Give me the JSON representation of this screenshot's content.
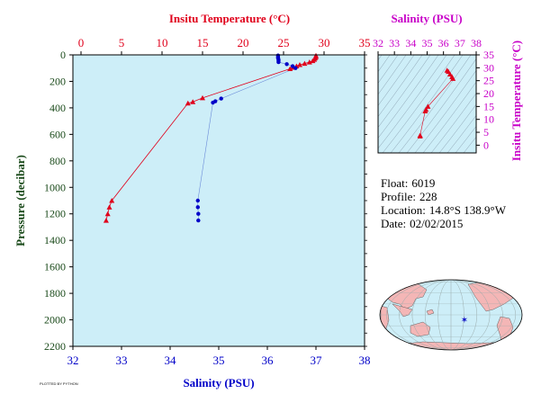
{
  "chart_data": {
    "type": "scatter",
    "main_plot": {
      "temperature_axis": {
        "label": "Insitu Temperature (°C)",
        "ticks": [
          0,
          5,
          10,
          15,
          20,
          25,
          30,
          35
        ],
        "range": [
          -1,
          35
        ],
        "color": "#e0001b"
      },
      "salinity_axis": {
        "label": "Salinity (PSU)",
        "ticks": [
          32,
          33,
          34,
          35,
          36,
          37,
          38
        ],
        "range": [
          32,
          38
        ],
        "color": "#0000c8"
      },
      "pressure_axis": {
        "label": "Pressure (decibar)",
        "ticks": [
          0,
          200,
          400,
          600,
          800,
          1000,
          1200,
          1400,
          1600,
          1800,
          2000,
          2200
        ],
        "range": [
          0,
          2200
        ],
        "inverted": true,
        "color": "#1a4a1a"
      },
      "temperature_profile": [
        {
          "t": 29.0,
          "p": 5
        },
        {
          "t": 29.0,
          "p": 15
        },
        {
          "t": 28.9,
          "p": 25
        },
        {
          "t": 28.8,
          "p": 35
        },
        {
          "t": 28.6,
          "p": 45
        },
        {
          "t": 28.2,
          "p": 55
        },
        {
          "t": 27.6,
          "p": 65
        },
        {
          "t": 27.0,
          "p": 75
        },
        {
          "t": 26.6,
          "p": 85
        },
        {
          "t": 26.2,
          "p": 95
        },
        {
          "t": 25.8,
          "p": 105
        },
        {
          "t": 15.0,
          "p": 325
        },
        {
          "t": 13.8,
          "p": 355
        },
        {
          "t": 13.2,
          "p": 365
        },
        {
          "t": 3.8,
          "p": 1100
        },
        {
          "t": 3.5,
          "p": 1150
        },
        {
          "t": 3.3,
          "p": 1200
        },
        {
          "t": 3.1,
          "p": 1250
        }
      ],
      "salinity_profile": [
        {
          "s": 36.22,
          "p": 5
        },
        {
          "s": 36.22,
          "p": 15
        },
        {
          "s": 36.22,
          "p": 25
        },
        {
          "s": 36.23,
          "p": 35
        },
        {
          "s": 36.23,
          "p": 45
        },
        {
          "s": 36.23,
          "p": 55
        },
        {
          "s": 36.4,
          "p": 70
        },
        {
          "s": 36.52,
          "p": 85
        },
        {
          "s": 36.58,
          "p": 100
        },
        {
          "s": 35.05,
          "p": 330
        },
        {
          "s": 34.93,
          "p": 350
        },
        {
          "s": 34.88,
          "p": 360
        },
        {
          "s": 34.57,
          "p": 1100
        },
        {
          "s": 34.57,
          "p": 1150
        },
        {
          "s": 34.58,
          "p": 1200
        },
        {
          "s": 34.58,
          "p": 1250
        }
      ]
    },
    "ts_plot": {
      "salinity_axis": {
        "label": "Salinity (PSU)",
        "ticks": [
          32,
          33,
          34,
          35,
          36,
          37,
          38
        ],
        "range": [
          32,
          38
        ],
        "color": "#c800c8"
      },
      "temperature_axis": {
        "label": "Insitu Temperature (°C)",
        "ticks": [
          0,
          5,
          10,
          15,
          20,
          25,
          30,
          35
        ],
        "range": [
          -3,
          35
        ],
        "color": "#c800c8"
      },
      "points": [
        {
          "s": 36.22,
          "t": 29.0
        },
        {
          "s": 36.3,
          "t": 28.5
        },
        {
          "s": 36.4,
          "t": 27.5
        },
        {
          "s": 36.52,
          "t": 26.5
        },
        {
          "s": 36.58,
          "t": 25.8
        },
        {
          "s": 35.05,
          "t": 15.0
        },
        {
          "s": 34.93,
          "t": 13.8
        },
        {
          "s": 34.88,
          "t": 13.2
        },
        {
          "s": 34.57,
          "t": 3.8
        },
        {
          "s": 34.57,
          "t": 3.5
        }
      ]
    }
  },
  "float_info": {
    "float_label": "Float:",
    "float_value": "6019",
    "profile_label": "Profile:",
    "profile_value": "228",
    "location_label": "Location:",
    "location_value": "14.8°S  138.9°W",
    "date_label": "Date:",
    "date_value": "02/02/2015"
  },
  "footer": {
    "text": "PLOTTED BY PYTHON"
  },
  "colors": {
    "plot_background": "#cdeef8",
    "map_ocean": "#cdeef8",
    "map_land": "#f4b6b6",
    "float_marker": "#0000c8",
    "axis_frame": "#000000"
  }
}
